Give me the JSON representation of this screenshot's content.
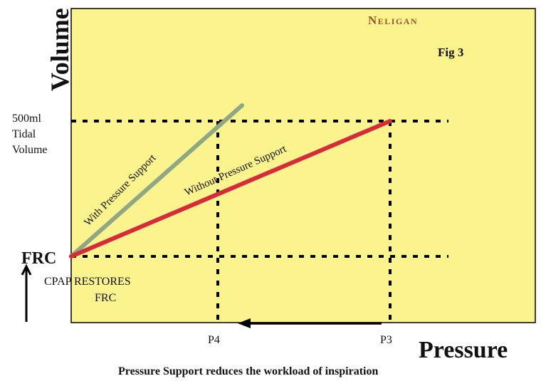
{
  "brand": "Neligan",
  "figure_label": "Fig 3",
  "axes": {
    "y_title": "Volume",
    "x_title": "Pressure"
  },
  "y_markers": {
    "tidal_line1": "500ml",
    "tidal_line2": "Tidal",
    "tidal_line3": "Volume",
    "frc": "FRC"
  },
  "x_markers": {
    "p4": "P4",
    "p3": "P3"
  },
  "lines": {
    "with_support": "With Pressure Support",
    "without_support": "Without Pressure Support"
  },
  "cpap_note": {
    "line1": "CPAP RESTORES",
    "line2": "FRC"
  },
  "caption": "Pressure Support reduces the workload of inspiration",
  "colors": {
    "plot_background": "#fbf38e",
    "with_support_line": "#8fa883",
    "without_support_line": "#d62b3a",
    "brand_text": "#a0522d",
    "guides": "#000000"
  }
}
